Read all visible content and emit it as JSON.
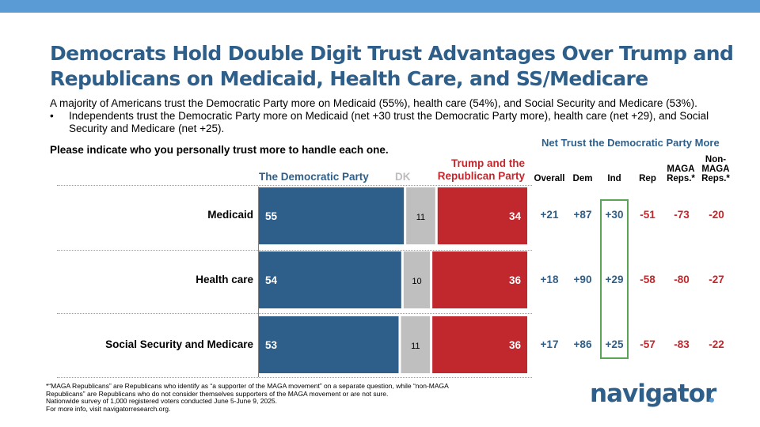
{
  "title": "Democrats Hold Double Digit Trust Advantages Over Trump and Republicans on Medicaid, Health Care, and SS/Medicare",
  "subtitle": "A majority of Americans trust the Democratic Party more on Medicaid (55%), health care (54%), and Social Security and Medicare (53%).",
  "bullet": {
    "marker": "•",
    "text": "Independents trust the Democratic Party more on Medicaid (net +30 trust the Democratic Party more), health care (net +29), and Social Security and Medicare (net +25)."
  },
  "question": "Please indicate who you personally trust more to handle each one.",
  "net_title": "Net Trust the Democratic Party More",
  "net_columns": [
    {
      "key": "overall",
      "label": "Overall",
      "color": "#2e5f8a"
    },
    {
      "key": "dem",
      "label": "Dem",
      "color": "#2e5f8a"
    },
    {
      "key": "ind",
      "label": "Ind",
      "color": "#2e5f8a"
    },
    {
      "key": "rep",
      "label": "Rep",
      "color": "#c0282d"
    },
    {
      "key": "maga",
      "label": "MAGA Reps.*",
      "color": "#c0282d"
    },
    {
      "key": "nonmaga",
      "label": "Non-MAGA Reps.*",
      "color": "#c0282d"
    }
  ],
  "colors": {
    "democratic": "#2e5f8a",
    "dk": "#bfbfbf",
    "republican": "#c0282d",
    "ind_highlight": "#5aa455",
    "top_bar": "#5b9bd5"
  },
  "chart_data": {
    "type": "bar",
    "orientation": "horizontal",
    "stacked": true,
    "categories": [
      "Medicaid",
      "Health care",
      "Social Security and Medicare"
    ],
    "series": [
      {
        "name": "The Democratic Party",
        "values": [
          55,
          54,
          53
        ]
      },
      {
        "name": "DK",
        "values": [
          11,
          10,
          11
        ]
      },
      {
        "name": "Trump and the Republican Party",
        "values": [
          34,
          36,
          36
        ]
      }
    ],
    "xlim": [
      0,
      100
    ],
    "net": {
      "overall": [
        "+21",
        "+18",
        "+17"
      ],
      "dem": [
        "+87",
        "+90",
        "+86"
      ],
      "ind": [
        "+30",
        "+29",
        "+25"
      ],
      "rep": [
        "-51",
        "-58",
        "-57"
      ],
      "maga": [
        "-73",
        "-80",
        "-83"
      ],
      "nonmaga": [
        "-20",
        "-27",
        "-22"
      ]
    }
  },
  "footnote": [
    "*“MAGA Republicans” are Republicans who identify as “a supporter of the MAGA movement” on a separate question, while “non-MAGA Republicans” are Republicans who do not consider themselves supporters of the MAGA movement or are not sure.",
    "Nationwide survey of 1,000 registered voters conducted June 5-June 9, 2025.",
    "For more info, visit navigatorresearch.org."
  ],
  "logo": "navigator"
}
